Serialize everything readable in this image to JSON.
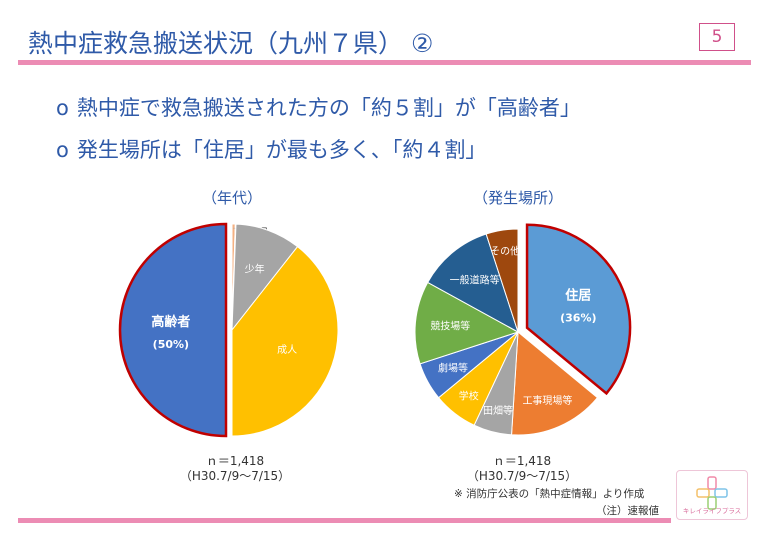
{
  "header": {
    "title": "熱中症救急搬送状況（九州７県）  ②",
    "page_number": "5"
  },
  "bullets": [
    {
      "mark": "o",
      "text": "熱中症で救急搬送された方の「約５割」が「高齢者」"
    },
    {
      "mark": "o",
      "text": "発生場所は「住居」が最も多く、「約４割」"
    }
  ],
  "chart_data": [
    {
      "type": "pie",
      "title": "（年代）",
      "slices": [
        {
          "name": "高齢者",
          "value": 50,
          "label": "(50%)",
          "color": "#4472c4",
          "highlight": true
        },
        {
          "name": "乳幼児",
          "value": 0.5,
          "color": "#f4b183"
        },
        {
          "name": "新生児",
          "value": 0.1,
          "color": "#dddddd"
        },
        {
          "name": "少年",
          "value": 10,
          "color": "#a5a5a5"
        },
        {
          "name": "成人",
          "value": 39.4,
          "color": "#ffc000"
        }
      ],
      "note_n": "ｎ＝1,418",
      "note_period": "（H30.7/9～7/15）"
    },
    {
      "type": "pie",
      "title": "（発生場所）",
      "slices": [
        {
          "name": "住居",
          "value": 36,
          "label": "(36%)",
          "color": "#5b9bd5",
          "highlight": true
        },
        {
          "name": "工事現場等",
          "value": 15,
          "color": "#ed7d31"
        },
        {
          "name": "田畑等",
          "value": 6,
          "color": "#a5a5a5"
        },
        {
          "name": "学校",
          "value": 7,
          "color": "#ffc000"
        },
        {
          "name": "劇場等",
          "value": 6,
          "color": "#4472c4"
        },
        {
          "name": "競技場等",
          "value": 13,
          "color": "#70ad47"
        },
        {
          "name": "一般道路等",
          "value": 12,
          "color": "#255e91"
        },
        {
          "name": "その他",
          "value": 5,
          "color": "#9e480e"
        }
      ],
      "note_n": "ｎ＝1,418",
      "note_period": "（H30.7/9～7/15）"
    }
  ],
  "footer": {
    "source": "※ 消防庁公表の「熱中症情報」より作成",
    "note": "（注）速報値",
    "logo_text": "キレイライフプラス"
  }
}
